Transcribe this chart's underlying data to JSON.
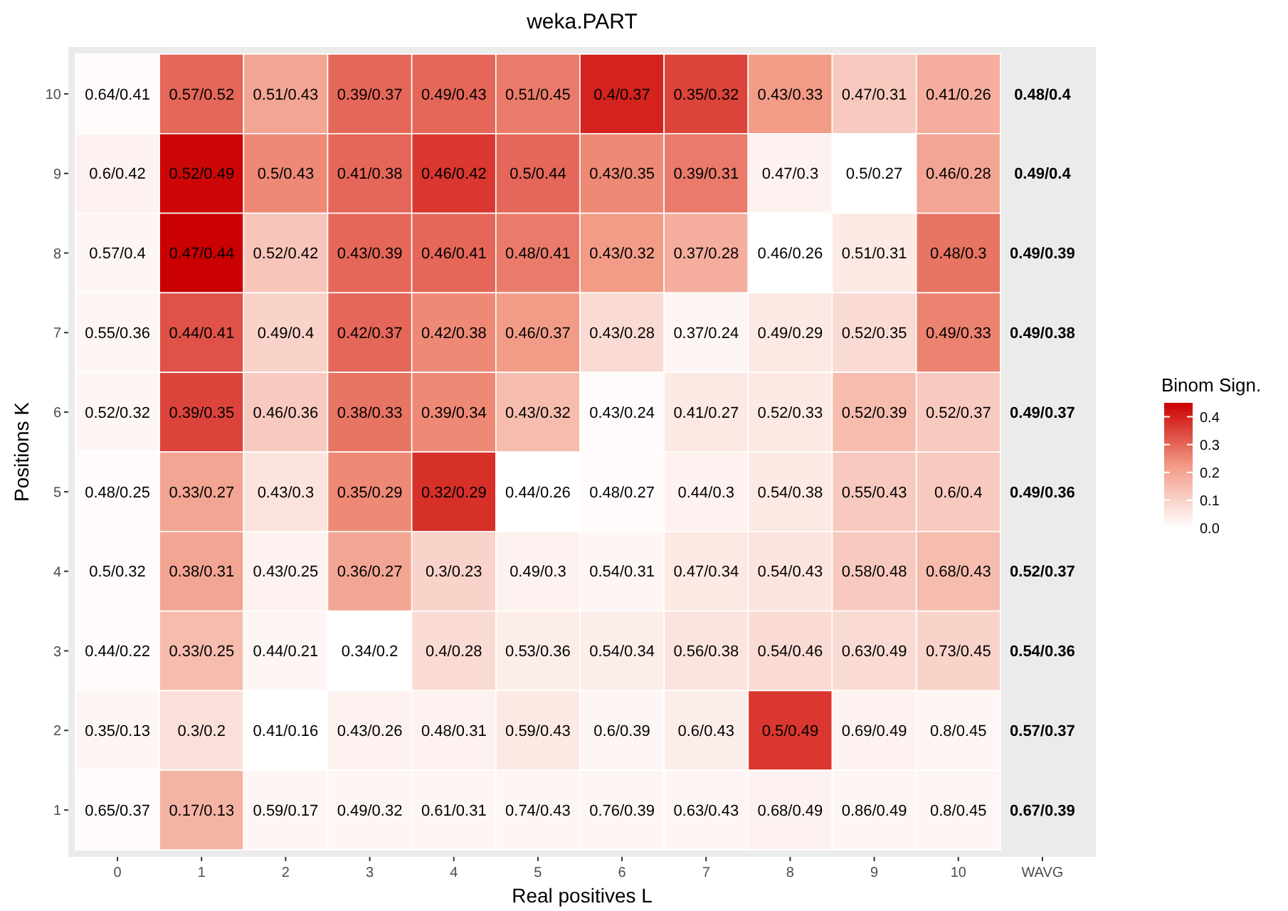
{
  "chart_data": {
    "type": "heatmap",
    "title": "weka.PART",
    "xlabel": "Real positives L",
    "ylabel": "Positions K",
    "legend_title": "Binom Sign.",
    "categories": [
      "0",
      "1",
      "2",
      "3",
      "4",
      "5",
      "6",
      "7",
      "8",
      "9",
      "10",
      "WAVG"
    ],
    "y_categories": [
      "10",
      "9",
      "8",
      "7",
      "6",
      "5",
      "4",
      "3",
      "2",
      "1"
    ],
    "cells": [
      [
        0.01,
        0.3,
        0.2,
        0.3,
        0.3,
        0.27,
        0.4,
        0.35,
        0.22,
        0.12,
        0.18,
        null
      ],
      [
        0.03,
        0.44,
        0.25,
        0.3,
        0.37,
        0.3,
        0.25,
        0.27,
        0.03,
        0,
        0.2,
        null
      ],
      [
        0.02,
        0.45,
        0.13,
        0.3,
        0.3,
        0.27,
        0.22,
        0.18,
        0,
        0.05,
        0.28,
        null
      ],
      [
        0.02,
        0.33,
        0.1,
        0.3,
        0.25,
        0.22,
        0.08,
        0.02,
        0.05,
        0.08,
        0.26,
        null
      ],
      [
        0.02,
        0.35,
        0.12,
        0.28,
        0.25,
        0.15,
        0.01,
        0.05,
        0.05,
        0.15,
        0.12,
        null
      ],
      [
        0.01,
        0.2,
        0.06,
        0.25,
        0.38,
        0,
        0.01,
        0.03,
        0.05,
        0.12,
        0.12,
        null
      ],
      [
        0.01,
        0.2,
        0.03,
        0.2,
        0.1,
        0.03,
        0.02,
        0.05,
        0.06,
        0.12,
        0.15,
        null
      ],
      [
        0.01,
        0.15,
        0.02,
        0,
        0.08,
        0.04,
        0.04,
        0.06,
        0.08,
        0.08,
        0.1,
        null
      ],
      [
        0.02,
        0.07,
        0,
        0.03,
        0.03,
        0.05,
        0.02,
        0.04,
        0.37,
        0.03,
        0.02,
        null
      ],
      [
        0.01,
        0.17,
        0.02,
        0.02,
        0.02,
        0.02,
        0.02,
        0.02,
        0.03,
        0.02,
        0.02,
        null
      ]
    ],
    "cell_labels": [
      [
        "0.64/0.41",
        "0.57/0.52",
        "0.51/0.43",
        "0.39/0.37",
        "0.49/0.43",
        "0.51/0.45",
        "0.4/0.37",
        "0.35/0.32",
        "0.43/0.33",
        "0.47/0.31",
        "0.41/0.26",
        "0.48/0.4"
      ],
      [
        "0.6/0.42",
        "0.52/0.49",
        "0.5/0.43",
        "0.41/0.38",
        "0.46/0.42",
        "0.5/0.44",
        "0.43/0.35",
        "0.39/0.31",
        "0.47/0.3",
        "0.5/0.27",
        "0.46/0.28",
        "0.49/0.4"
      ],
      [
        "0.57/0.4",
        "0.47/0.44",
        "0.52/0.42",
        "0.43/0.39",
        "0.46/0.41",
        "0.48/0.41",
        "0.43/0.32",
        "0.37/0.28",
        "0.46/0.26",
        "0.51/0.31",
        "0.48/0.3",
        "0.49/0.39"
      ],
      [
        "0.55/0.36",
        "0.44/0.41",
        "0.49/0.4",
        "0.42/0.37",
        "0.42/0.38",
        "0.46/0.37",
        "0.43/0.28",
        "0.37/0.24",
        "0.49/0.29",
        "0.52/0.35",
        "0.49/0.33",
        "0.49/0.38"
      ],
      [
        "0.52/0.32",
        "0.39/0.35",
        "0.46/0.36",
        "0.38/0.33",
        "0.39/0.34",
        "0.43/0.32",
        "0.43/0.24",
        "0.41/0.27",
        "0.52/0.33",
        "0.52/0.39",
        "0.52/0.37",
        "0.49/0.37"
      ],
      [
        "0.48/0.25",
        "0.33/0.27",
        "0.43/0.3",
        "0.35/0.29",
        "0.32/0.29",
        "0.44/0.26",
        "0.48/0.27",
        "0.44/0.3",
        "0.54/0.38",
        "0.55/0.43",
        "0.6/0.4",
        "0.49/0.36"
      ],
      [
        "0.5/0.32",
        "0.38/0.31",
        "0.43/0.25",
        "0.36/0.27",
        "0.3/0.23",
        "0.49/0.3",
        "0.54/0.31",
        "0.47/0.34",
        "0.54/0.43",
        "0.58/0.48",
        "0.68/0.43",
        "0.52/0.37"
      ],
      [
        "0.44/0.22",
        "0.33/0.25",
        "0.44/0.21",
        "0.34/0.2",
        "0.4/0.28",
        "0.53/0.36",
        "0.54/0.34",
        "0.56/0.38",
        "0.54/0.46",
        "0.63/0.49",
        "0.73/0.45",
        "0.54/0.36"
      ],
      [
        "0.35/0.13",
        "0.3/0.2",
        "0.41/0.16",
        "0.43/0.26",
        "0.48/0.31",
        "0.59/0.43",
        "0.6/0.39",
        "0.6/0.43",
        "0.5/0.49",
        "0.69/0.49",
        "0.8/0.45",
        "0.57/0.37"
      ],
      [
        "0.65/0.37",
        "0.17/0.13",
        "0.59/0.17",
        "0.49/0.32",
        "0.61/0.31",
        "0.74/0.43",
        "0.76/0.39",
        "0.63/0.43",
        "0.68/0.49",
        "0.86/0.49",
        "0.8/0.45",
        "0.67/0.39"
      ]
    ],
    "clim": [
      0,
      0.45
    ],
    "cticks": [
      {
        "value": 0,
        "label": "0.0"
      },
      0.1,
      0.2,
      0.3,
      0.4
    ]
  }
}
